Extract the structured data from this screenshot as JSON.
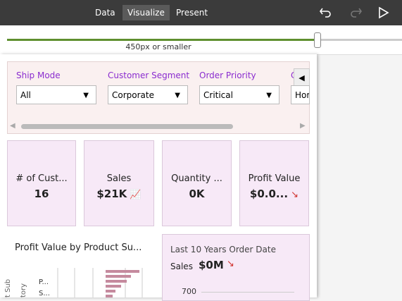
{
  "toolbar": {
    "tabs": [
      "Data",
      "Visualize",
      "Present"
    ],
    "active_tab": "Visualize"
  },
  "slider": {
    "label": "450px or smaller"
  },
  "filters": [
    {
      "label": "Ship Mode",
      "value": "All"
    },
    {
      "label": "Customer Segment",
      "value": "Corporate"
    },
    {
      "label": "Order Priority",
      "value": "Critical"
    },
    {
      "label": "C",
      "value": "Hor"
    }
  ],
  "kpis": [
    {
      "title": "# of Cust...",
      "value": "16"
    },
    {
      "title": "Sales",
      "value": "$21K"
    },
    {
      "title": "Quantity ...",
      "value": "0K"
    },
    {
      "title": "Profit Value",
      "value": "$0.0..."
    }
  ],
  "bar_chart": {
    "title": "Profit Value by Product Su...",
    "axis_title": [
      "t Sub",
      "tory"
    ],
    "categories": [
      "P...",
      "S..."
    ]
  },
  "trend_tile": {
    "title": "Last 10 Years Order Date",
    "measure": "Sales",
    "value": "$0M",
    "tick": "700"
  }
}
